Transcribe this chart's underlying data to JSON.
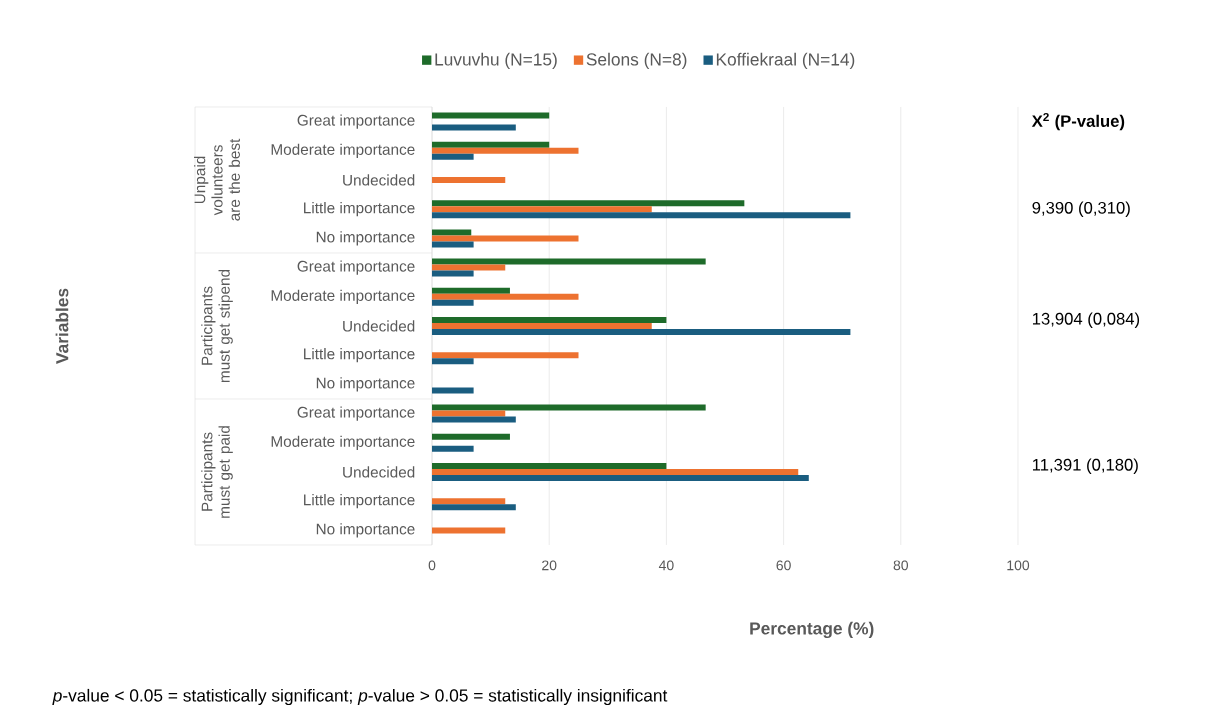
{
  "chart_data": {
    "type": "bar",
    "orientation": "horizontal",
    "categories": [
      "Great importance",
      "Moderate importance",
      "Undecided",
      "Little importance",
      "No importance",
      "Great importance",
      "Moderate importance",
      "Undecided",
      "Little importance",
      "No importance",
      "Great importance",
      "Moderate importance",
      "Undecided",
      "Little importance",
      "No importance"
    ],
    "series": [
      {
        "name": "Luvuvhu (N=15)",
        "color": "#1e6b2a",
        "values": [
          20,
          20,
          0,
          53.3,
          6.7,
          46.7,
          13.3,
          40,
          0,
          0,
          46.7,
          13.3,
          40,
          0,
          0
        ]
      },
      {
        "name": "Selons (N=8)",
        "color": "#ed7230",
        "values": [
          0,
          25,
          12.5,
          37.5,
          25,
          12.5,
          25,
          37.5,
          25,
          0,
          12.5,
          0,
          62.5,
          12.5,
          12.5
        ]
      },
      {
        "name": "Koffiekraal (N=14)",
        "color": "#1a5d80",
        "values": [
          14.3,
          7.1,
          0,
          71.4,
          7.1,
          7.1,
          7.1,
          71.4,
          7.1,
          7.1,
          14.3,
          7.1,
          64.3,
          14.3,
          0
        ]
      }
    ],
    "xlabel": "Percentage (%)",
    "xlim": [
      0,
      100
    ],
    "xticks": [
      0,
      20,
      40,
      60,
      80,
      100
    ],
    "grid": "x",
    "legend": "top",
    "annotations": [
      "Variables",
      "Unpaid volunteers are the best",
      "Participants must get stipend",
      "Participants must get paid",
      "X$^{2}$ (P-value)",
      "9,390 (0,310)",
      "13,904 (0,084)",
      "11,391 (0,180)",
      "*p*-value < 0.05 = statistically significant; *p*-value > 0.05 = statistically insignificant"
    ]
  }
}
